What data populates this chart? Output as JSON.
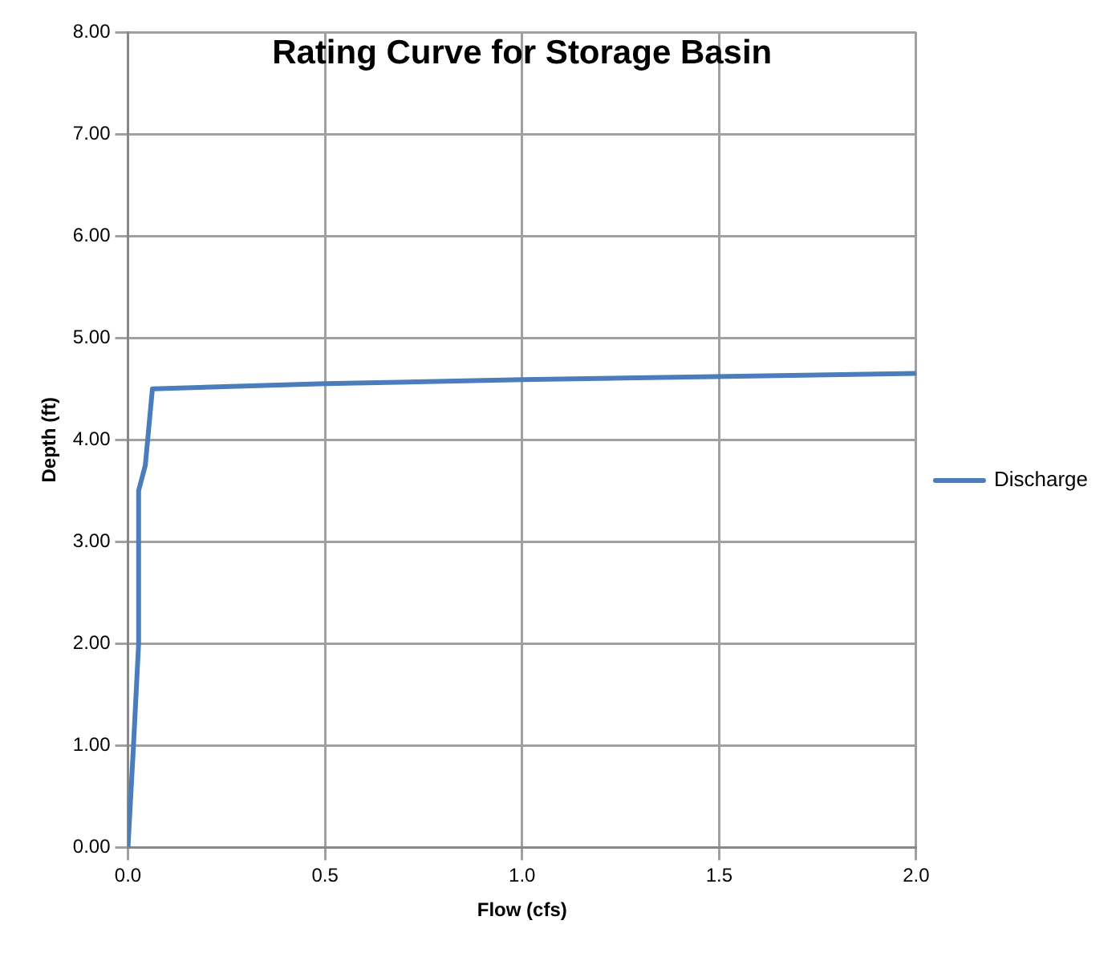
{
  "chart_data": {
    "type": "line",
    "title": "Rating Curve for Storage Basin",
    "xlabel": "Flow (cfs)",
    "ylabel": "Depth (ft)",
    "series": [
      {
        "name": "Discharge",
        "color": "#4a7ebb",
        "x": [
          0,
          0.014,
          0.027,
          0.027,
          0.044,
          0.062,
          0.5,
          1.0,
          2.0
        ],
        "values": [
          0,
          1.0,
          2.0,
          3.5,
          3.75,
          4.5,
          4.55,
          4.59,
          4.65
        ]
      }
    ],
    "xlim": [
      0,
      2.0
    ],
    "xticks": [
      {
        "value": 0,
        "label": "0.0"
      },
      {
        "value": 0.5,
        "label": "0.5"
      },
      {
        "value": 1.0,
        "label": "1.0"
      },
      {
        "value": 1.5,
        "label": "1.5"
      },
      {
        "value": 2.0,
        "label": "2.0"
      }
    ],
    "ylim": [
      0,
      8
    ],
    "yticks": [
      {
        "value": 0,
        "label": "0.00"
      },
      {
        "value": 1,
        "label": "1.00"
      },
      {
        "value": 2,
        "label": "2.00"
      },
      {
        "value": 3,
        "label": "3.00"
      },
      {
        "value": 4,
        "label": "4.00"
      },
      {
        "value": 5,
        "label": "5.00"
      },
      {
        "value": 6,
        "label": "6.00"
      },
      {
        "value": 7,
        "label": "7.00"
      },
      {
        "value": 8,
        "label": "8.00"
      }
    ],
    "grid": true,
    "legend": "right",
    "marker": "none",
    "line_style": "solid"
  }
}
